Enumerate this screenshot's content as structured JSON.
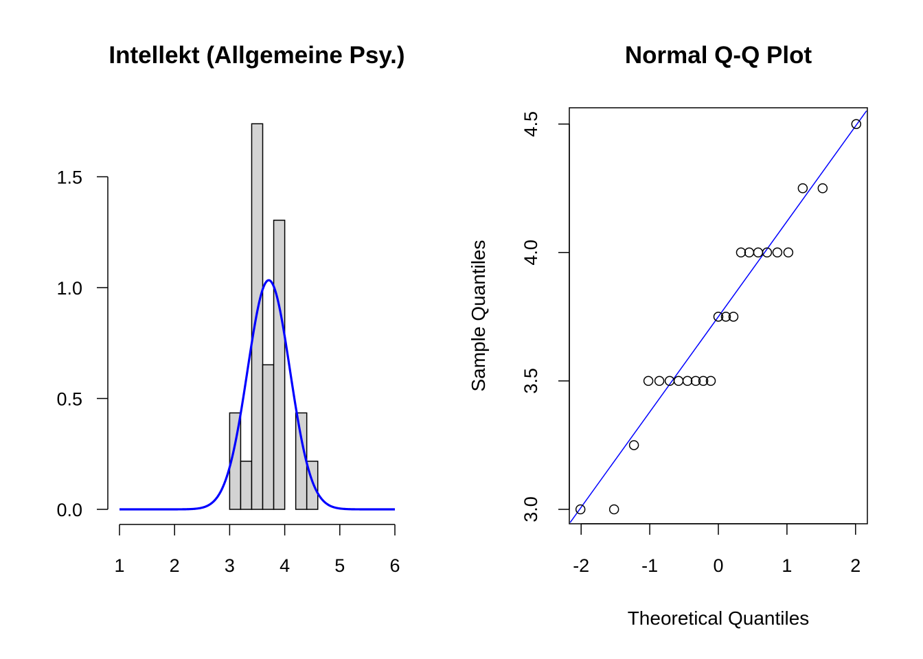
{
  "chart_data": [
    {
      "type": "histogram",
      "title": "Intellekt (Allgemeine Psy.)",
      "xlabel": "",
      "ylabel": "",
      "xlim": [
        1,
        6
      ],
      "ylim": [
        0,
        1.75
      ],
      "x_ticks": [
        "1",
        "2",
        "3",
        "4",
        "5",
        "6"
      ],
      "y_ticks": [
        "0.0",
        "0.5",
        "1.0",
        "1.5"
      ],
      "bin_width": 0.2,
      "bins": [
        {
          "start": 3.0,
          "end": 3.2,
          "density": 0.435
        },
        {
          "start": 3.2,
          "end": 3.4,
          "density": 0.217
        },
        {
          "start": 3.4,
          "end": 3.6,
          "density": 1.739
        },
        {
          "start": 3.6,
          "end": 3.8,
          "density": 0.652
        },
        {
          "start": 3.8,
          "end": 4.0,
          "density": 1.304
        },
        {
          "start": 4.0,
          "end": 4.2,
          "density": 0.0
        },
        {
          "start": 4.2,
          "end": 4.4,
          "density": 0.435
        },
        {
          "start": 4.4,
          "end": 4.6,
          "density": 0.217
        }
      ],
      "density_curve": {
        "distribution": "normal",
        "mean": 3.71,
        "sd": 0.386,
        "range": [
          1,
          6
        ],
        "color": "#0000ff"
      },
      "colors": {
        "bar_fill": "#d3d3d3",
        "bar_stroke": "#000000"
      }
    },
    {
      "type": "scatter",
      "title": "Normal Q-Q Plot",
      "xlabel": "Theoretical Quantiles",
      "ylabel": "Sample Quantiles",
      "xlim": [
        -2.16,
        2.16
      ],
      "ylim": [
        2.94,
        4.56
      ],
      "x_ticks": [
        "-2",
        "-1",
        "0",
        "1",
        "2"
      ],
      "y_ticks": [
        "3.0",
        "3.5",
        "4.0",
        "4.5"
      ],
      "points": [
        {
          "x": -2.01,
          "y": 3.0
        },
        {
          "x": -1.52,
          "y": 3.0
        },
        {
          "x": -1.23,
          "y": 3.25
        },
        {
          "x": -1.02,
          "y": 3.5
        },
        {
          "x": -0.86,
          "y": 3.5
        },
        {
          "x": -0.71,
          "y": 3.5
        },
        {
          "x": -0.58,
          "y": 3.5
        },
        {
          "x": -0.45,
          "y": 3.5
        },
        {
          "x": -0.33,
          "y": 3.5
        },
        {
          "x": -0.22,
          "y": 3.5
        },
        {
          "x": -0.11,
          "y": 3.5
        },
        {
          "x": 0.0,
          "y": 3.75
        },
        {
          "x": 0.11,
          "y": 3.75
        },
        {
          "x": 0.22,
          "y": 3.75
        },
        {
          "x": 0.33,
          "y": 4.0
        },
        {
          "x": 0.45,
          "y": 4.0
        },
        {
          "x": 0.58,
          "y": 4.0
        },
        {
          "x": 0.71,
          "y": 4.0
        },
        {
          "x": 0.86,
          "y": 4.0
        },
        {
          "x": 1.02,
          "y": 4.0
        },
        {
          "x": 1.23,
          "y": 4.25
        },
        {
          "x": 1.52,
          "y": 4.25
        },
        {
          "x": 2.01,
          "y": 4.5
        }
      ],
      "reference_line": {
        "intercept": 3.75,
        "slope": 0.371,
        "color": "#0000ff"
      },
      "colors": {
        "point_stroke": "#000000"
      }
    }
  ]
}
